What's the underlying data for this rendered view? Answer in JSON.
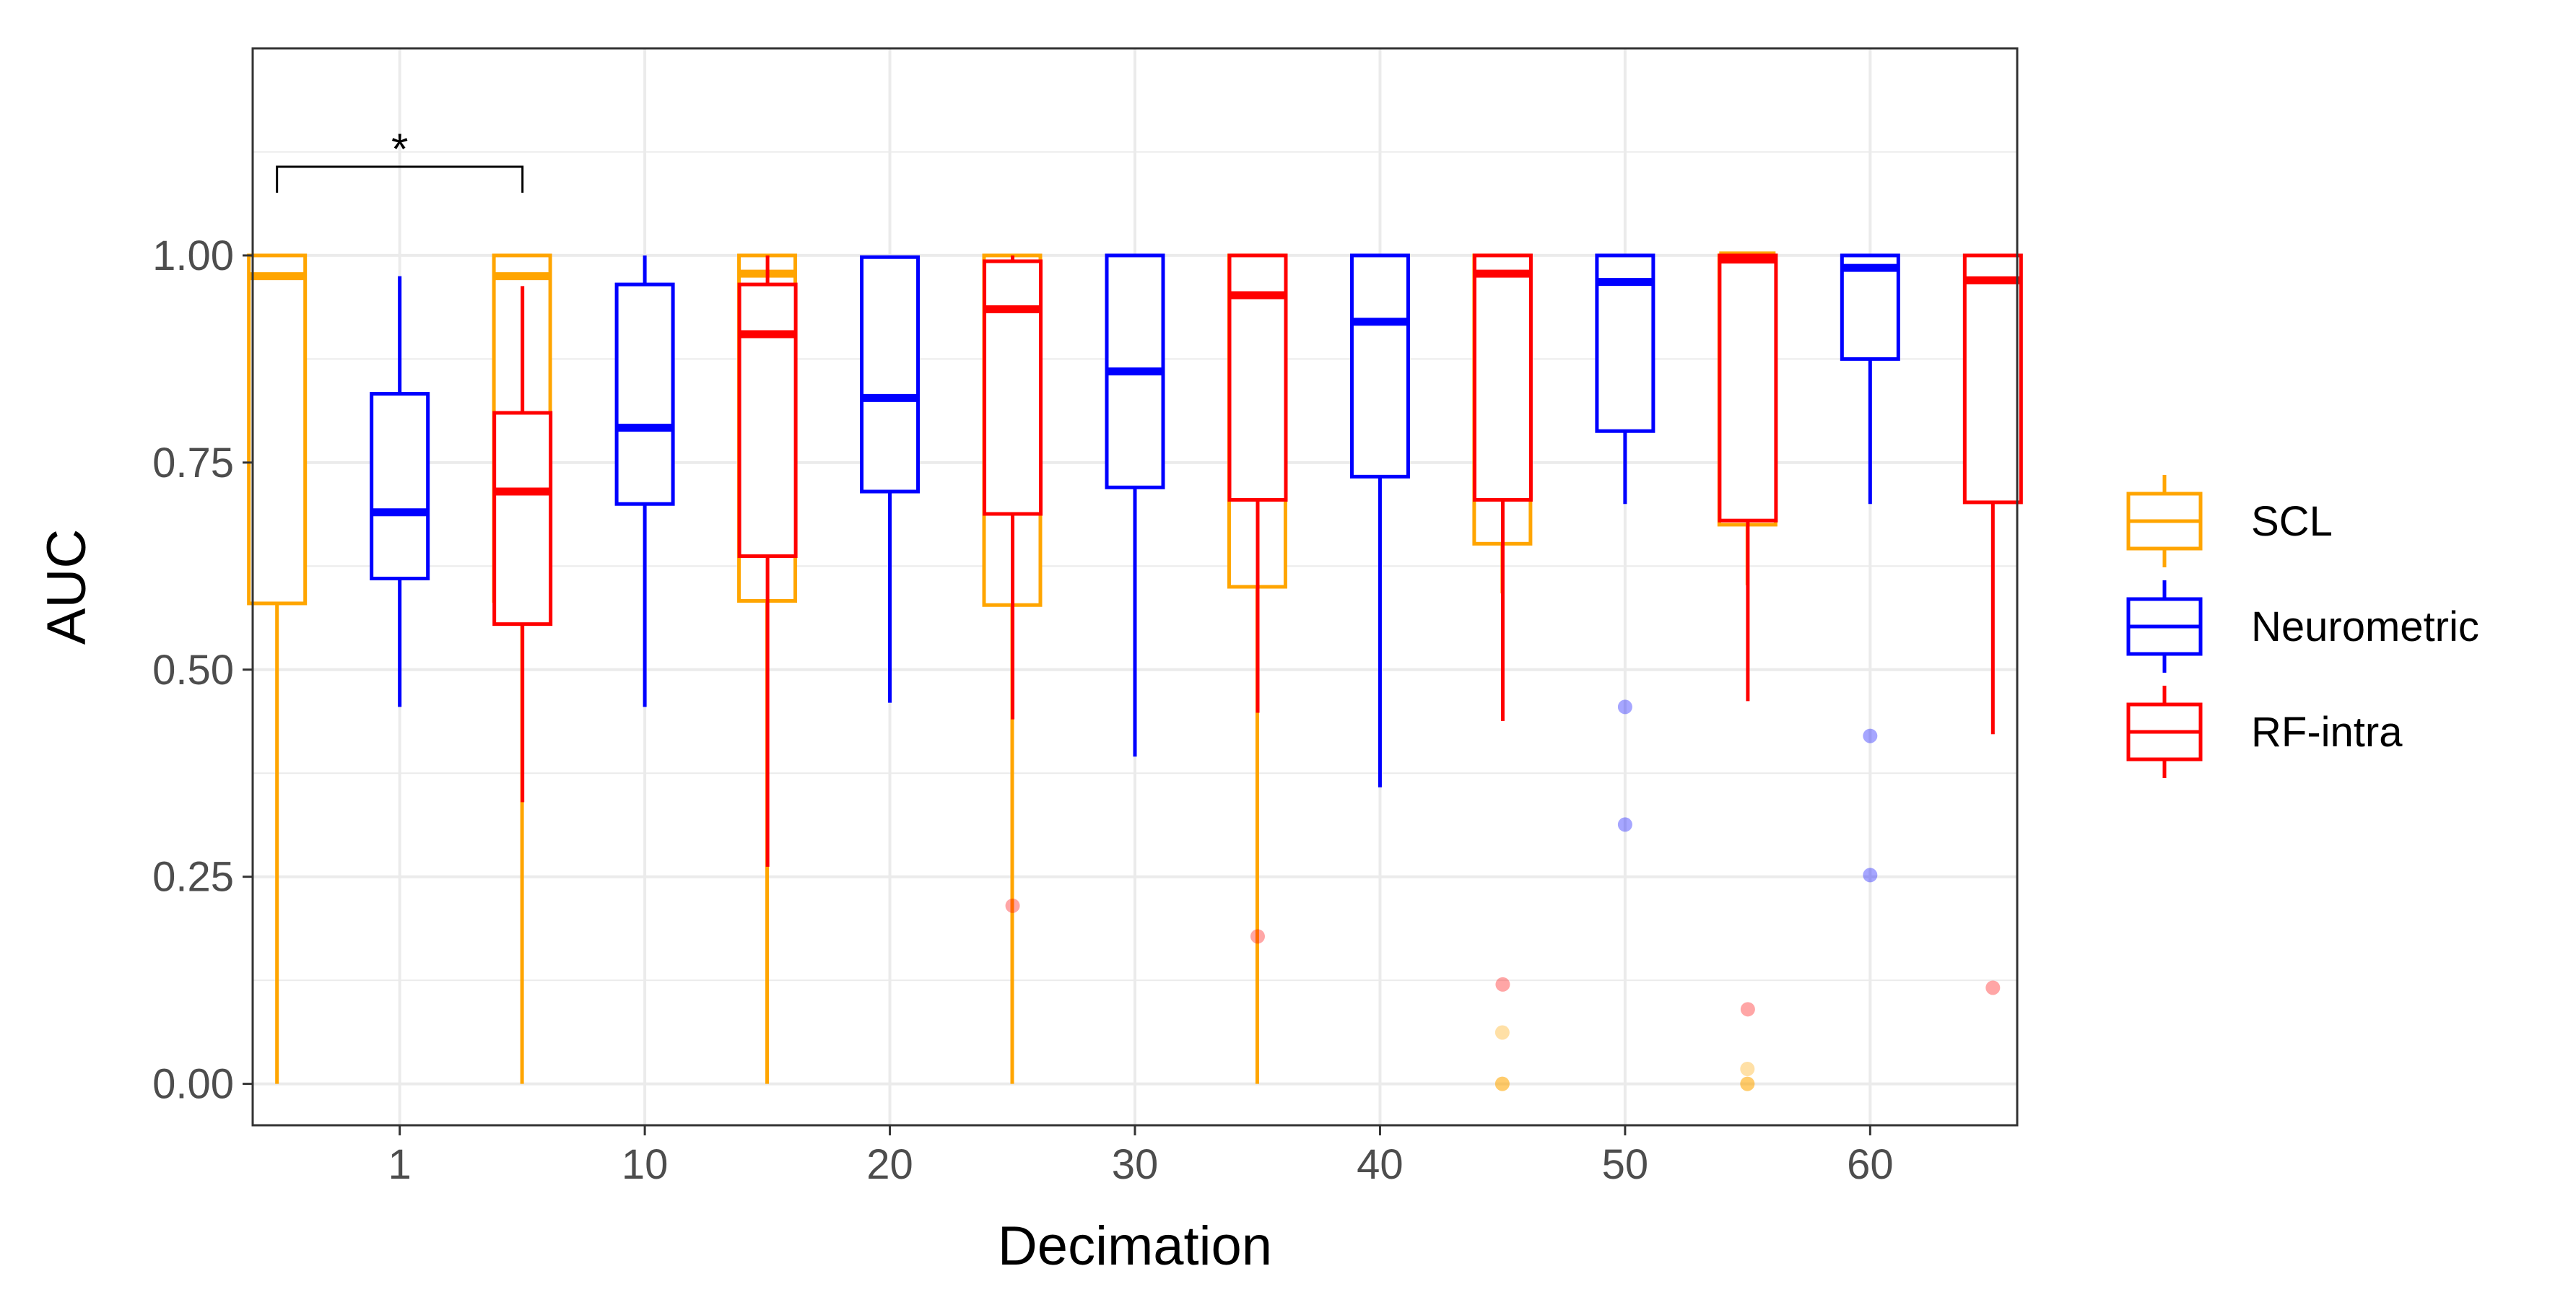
{
  "chart_data": {
    "type": "boxplot",
    "title": "",
    "xlabel": "Decimation",
    "ylabel": "AUC",
    "ylim": [
      -0.05,
      1.25
    ],
    "yticks": [
      0.0,
      0.25,
      0.5,
      0.75,
      1.0
    ],
    "ytick_labels": [
      "0.00",
      "0.25",
      "0.50",
      "0.75",
      "1.00"
    ],
    "categories": [
      "1",
      "10",
      "20",
      "30",
      "40",
      "50",
      "60"
    ],
    "legend_position": "right",
    "grid": true,
    "significance": [
      {
        "category": "1",
        "series": [
          "SCL",
          "RF-intra"
        ],
        "label": "*"
      }
    ],
    "series": [
      {
        "name": "SCL",
        "color": "#FFA500",
        "boxes": [
          {
            "min": 0.0,
            "q1": 0.58,
            "median": 0.975,
            "q3": 1.0,
            "max": 1.0,
            "outliers": []
          },
          {
            "min": 0.0,
            "q1": 0.583,
            "median": 0.975,
            "q3": 1.0,
            "max": 1.0,
            "outliers": []
          },
          {
            "min": 0.0,
            "q1": 0.583,
            "median": 0.978,
            "q3": 1.0,
            "max": 1.0,
            "outliers": []
          },
          {
            "min": 0.0,
            "q1": 0.578,
            "median": 0.972,
            "q3": 1.0,
            "max": 1.0,
            "outliers": []
          },
          {
            "min": 0.0,
            "q1": 0.6,
            "median": 0.983,
            "q3": 1.0,
            "max": 1.0,
            "outliers": []
          },
          {
            "min": 0.592,
            "q1": 0.652,
            "median": 0.99,
            "q3": 1.0,
            "max": 1.0,
            "outliers": [
              0.062,
              0.0,
              0.0
            ]
          },
          {
            "min": 0.602,
            "q1": 0.675,
            "median": 1.0,
            "q3": 1.0,
            "max": 1.0,
            "outliers": [
              0.018,
              0.0,
              0.0
            ]
          }
        ]
      },
      {
        "name": "Neurometric",
        "color": "#0000FF",
        "boxes": [
          {
            "min": 0.455,
            "q1": 0.61,
            "median": 0.69,
            "q3": 0.833,
            "max": 0.975,
            "outliers": []
          },
          {
            "min": 0.455,
            "q1": 0.7,
            "median": 0.792,
            "q3": 0.965,
            "max": 1.0,
            "outliers": []
          },
          {
            "min": 0.46,
            "q1": 0.715,
            "median": 0.828,
            "q3": 0.998,
            "max": 1.0,
            "outliers": []
          },
          {
            "min": 0.395,
            "q1": 0.72,
            "median": 0.86,
            "q3": 1.0,
            "max": 1.0,
            "outliers": []
          },
          {
            "min": 0.358,
            "q1": 0.733,
            "median": 0.92,
            "q3": 1.0,
            "max": 1.0,
            "outliers": []
          },
          {
            "min": 0.7,
            "q1": 0.788,
            "median": 0.968,
            "q3": 1.0,
            "max": 1.0,
            "outliers": [
              0.455,
              0.313
            ]
          },
          {
            "min": 0.7,
            "q1": 0.875,
            "median": 0.985,
            "q3": 1.0,
            "max": 1.0,
            "outliers": [
              0.42,
              0.252
            ]
          }
        ]
      },
      {
        "name": "RF-intra",
        "color": "#FF0000",
        "boxes": [
          {
            "min": 0.34,
            "q1": 0.555,
            "median": 0.715,
            "q3": 0.81,
            "max": 0.963,
            "outliers": []
          },
          {
            "min": 0.262,
            "q1": 0.637,
            "median": 0.905,
            "q3": 0.965,
            "max": 1.0,
            "outliers": []
          },
          {
            "min": 0.44,
            "q1": 0.688,
            "median": 0.935,
            "q3": 0.993,
            "max": 1.0,
            "outliers": [
              0.215
            ]
          },
          {
            "min": 0.448,
            "q1": 0.705,
            "median": 0.952,
            "q3": 1.0,
            "max": 1.0,
            "outliers": [
              0.178
            ]
          },
          {
            "min": 0.438,
            "q1": 0.705,
            "median": 0.978,
            "q3": 1.0,
            "max": 1.0,
            "outliers": [
              0.12
            ]
          },
          {
            "min": 0.462,
            "q1": 0.68,
            "median": 0.995,
            "q3": 1.0,
            "max": 1.0,
            "outliers": [
              0.09
            ]
          },
          {
            "min": 0.422,
            "q1": 0.702,
            "median": 0.97,
            "q3": 1.0,
            "max": 1.0,
            "outliers": [
              0.116
            ]
          }
        ]
      }
    ]
  }
}
